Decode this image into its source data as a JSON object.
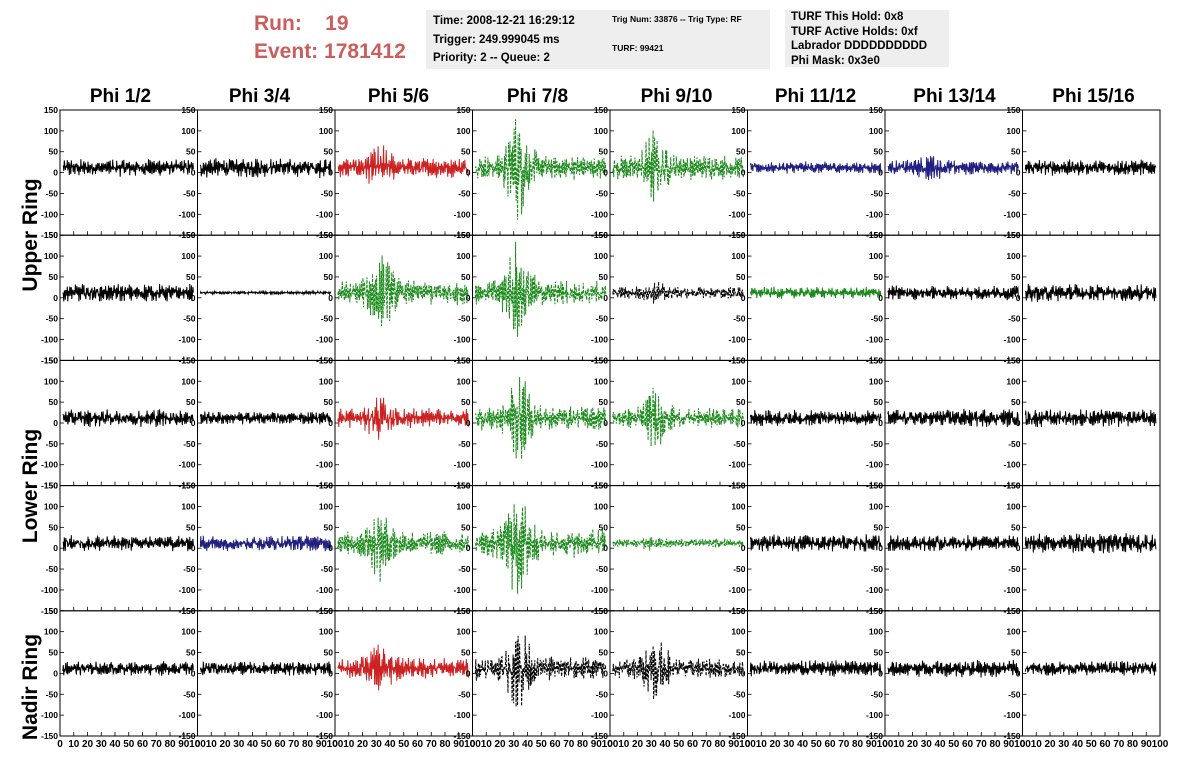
{
  "header": {
    "run_label": "Run:",
    "run_value": "19",
    "event_label": "Event:",
    "event_value": "1781412"
  },
  "info_box_1": {
    "line1": "Time: 2008-12-21 16:29:12",
    "line2": "Trigger: 249.999045 ms",
    "line3": "Priority: 2 -- Queue: 2"
  },
  "info_box_2": {
    "line1": "Trig Num: 33876 -- Trig Type: RF",
    "line2": "TURF: 99421"
  },
  "info_box_3": {
    "line1": "TURF This Hold: 0x8",
    "line2": "TURF Active Holds: 0xf",
    "line3": "Labrador DDDDDDDDDD",
    "line4": "Phi Mask: 0x3e0"
  },
  "columns": [
    "Phi 1/2",
    "Phi 3/4",
    "Phi 5/6",
    "Phi 7/8",
    "Phi 9/10",
    "Phi 11/12",
    "Phi 13/14",
    "Phi 15/16"
  ],
  "rings": [
    "Upper Ring",
    "Lower Ring",
    "Nadir Ring"
  ],
  "colors": {
    "black": "#000000",
    "red": "#cc2222",
    "green": "#1a8a1a",
    "blue": "#202080",
    "title": "#cd5c5c"
  },
  "chart_data": {
    "type": "line",
    "xlim": [
      0,
      100
    ],
    "ylim": [
      -150,
      150
    ],
    "y_ticks": [
      -150,
      -100,
      -50,
      0,
      50,
      100,
      150
    ],
    "x_ticks": [
      0,
      10,
      20,
      30,
      40,
      50,
      60,
      70,
      80,
      90,
      100
    ],
    "rows": 5,
    "cols": 8,
    "panels": [
      [
        {
          "color": "black",
          "style": "solid",
          "amp": 22,
          "peak": 0
        },
        {
          "color": "black",
          "style": "solid",
          "amp": 25,
          "peak": 0
        },
        {
          "color": "red",
          "style": "solid",
          "amp": 25,
          "peak": 60
        },
        {
          "color": "green",
          "style": "dashed",
          "amp": 30,
          "peak": 130
        },
        {
          "color": "green",
          "style": "dashed",
          "amp": 30,
          "peak": 100
        },
        {
          "color": "blue",
          "style": "solid",
          "amp": 15,
          "peak": 0
        },
        {
          "color": "blue",
          "style": "solid",
          "amp": 18,
          "peak": 35
        },
        {
          "color": "black",
          "style": "solid",
          "amp": 20,
          "peak": 0
        }
      ],
      [
        {
          "color": "black",
          "style": "solid",
          "amp": 22,
          "peak": 0
        },
        {
          "color": "black",
          "style": "solid",
          "amp": 4,
          "peak": 0
        },
        {
          "color": "green",
          "style": "dashed",
          "amp": 30,
          "peak": 100
        },
        {
          "color": "green",
          "style": "dashed",
          "amp": 30,
          "peak": 130
        },
        {
          "color": "black",
          "style": "dashed",
          "amp": 15,
          "peak": 30
        },
        {
          "color": "green",
          "style": "solid",
          "amp": 15,
          "peak": 0
        },
        {
          "color": "black",
          "style": "solid",
          "amp": 18,
          "peak": 0
        },
        {
          "color": "black",
          "style": "solid",
          "amp": 22,
          "peak": 0
        }
      ],
      [
        {
          "color": "black",
          "style": "solid",
          "amp": 22,
          "peak": 0
        },
        {
          "color": "black",
          "style": "solid",
          "amp": 16,
          "peak": 0
        },
        {
          "color": "red",
          "style": "solid",
          "amp": 25,
          "peak": 60
        },
        {
          "color": "green",
          "style": "dashed",
          "amp": 30,
          "peak": 115
        },
        {
          "color": "green",
          "style": "dashed",
          "amp": 25,
          "peak": 80
        },
        {
          "color": "black",
          "style": "solid",
          "amp": 20,
          "peak": 0
        },
        {
          "color": "black",
          "style": "solid",
          "amp": 22,
          "peak": 0
        },
        {
          "color": "black",
          "style": "solid",
          "amp": 22,
          "peak": 0
        }
      ],
      [
        {
          "color": "black",
          "style": "solid",
          "amp": 20,
          "peak": 0
        },
        {
          "color": "blue",
          "style": "solid",
          "amp": 20,
          "peak": 0
        },
        {
          "color": "green",
          "style": "dashed",
          "amp": 30,
          "peak": 100
        },
        {
          "color": "green",
          "style": "dashed",
          "amp": 35,
          "peak": 135
        },
        {
          "color": "green",
          "style": "dashed",
          "amp": 12,
          "peak": 20
        },
        {
          "color": "black",
          "style": "solid",
          "amp": 22,
          "peak": 0
        },
        {
          "color": "black",
          "style": "solid",
          "amp": 20,
          "peak": 0
        },
        {
          "color": "black",
          "style": "solid",
          "amp": 25,
          "peak": 0
        }
      ],
      [
        {
          "color": "black",
          "style": "solid",
          "amp": 18,
          "peak": 0
        },
        {
          "color": "black",
          "style": "solid",
          "amp": 18,
          "peak": 0
        },
        {
          "color": "red",
          "style": "solid",
          "amp": 25,
          "peak": 65
        },
        {
          "color": "black",
          "style": "dashed",
          "amp": 30,
          "peak": 110
        },
        {
          "color": "black",
          "style": "dashed",
          "amp": 25,
          "peak": 85
        },
        {
          "color": "black",
          "style": "solid",
          "amp": 20,
          "peak": 0
        },
        {
          "color": "black",
          "style": "solid",
          "amp": 22,
          "peak": 0
        },
        {
          "color": "black",
          "style": "solid",
          "amp": 18,
          "peak": 0
        }
      ]
    ]
  }
}
